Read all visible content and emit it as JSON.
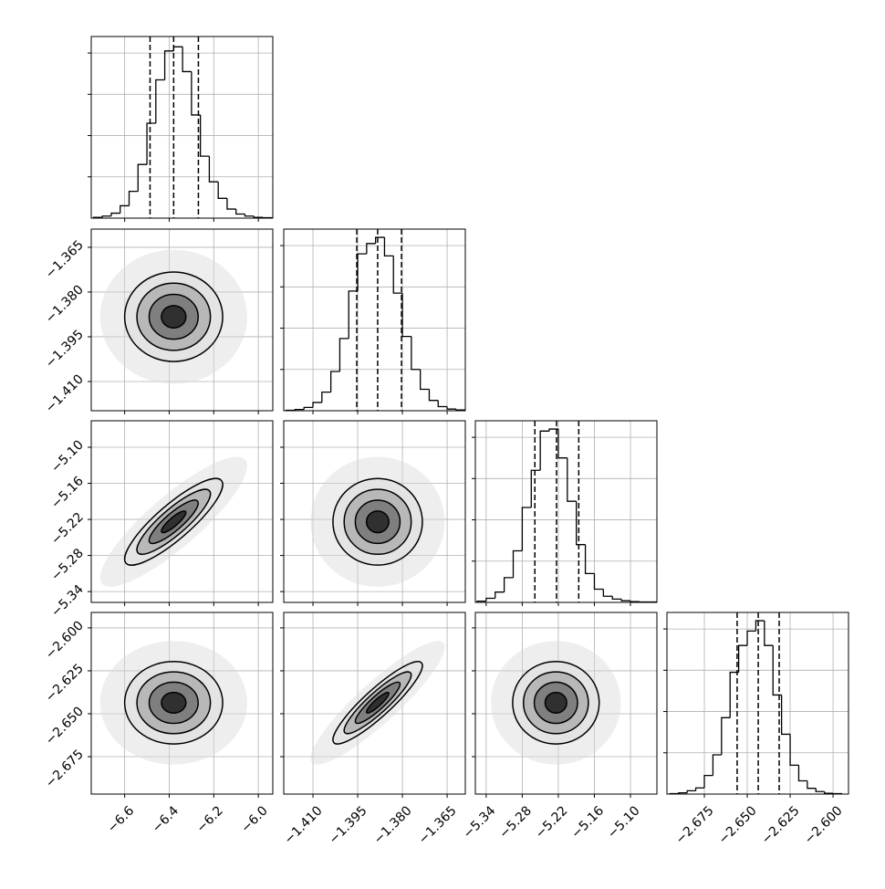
{
  "chart_data": {
    "type": "corner",
    "contour_levels": [
      2,
      1.5,
      1,
      0.5
    ],
    "contour_fills": [
      "#e4e4e4",
      "#b8b8b8",
      "#7f7f7f",
      "#303030"
    ],
    "scatter_extent": 3,
    "grid": true,
    "variables": [
      {
        "xlim": [
          -6.75,
          -5.935
        ],
        "mean": -6.38,
        "sd": 0.11,
        "xticks": [
          {
            "value": -6.6,
            "label": "−6.6"
          },
          {
            "value": -6.4,
            "label": "−6.4"
          },
          {
            "value": -6.2,
            "label": "−6.2"
          },
          {
            "value": -6.0,
            "label": "−6.0"
          }
        ],
        "quantiles": [
          -6.486,
          -6.38,
          -6.269
        ],
        "hist": {
          "bins": [
            -6.74,
            -6.7,
            -6.66,
            -6.62,
            -6.58,
            -6.54,
            -6.5,
            -6.46,
            -6.42,
            -6.38,
            -6.34,
            -6.3,
            -6.26,
            -6.22,
            -6.18,
            -6.14,
            -6.1,
            -6.06,
            -6.02,
            -5.98,
            -5.94
          ],
          "counts": [
            2,
            5,
            12,
            30,
            65,
            130,
            230,
            335,
            405,
            415,
            355,
            250,
            150,
            88,
            48,
            22,
            10,
            5,
            2,
            1
          ],
          "ylim": [
            0,
            440
          ],
          "yticks": [
            100,
            200,
            300,
            400
          ]
        }
      },
      {
        "xlim": [
          -1.4198,
          -1.3589
        ],
        "mean": -1.3883,
        "sd": 0.0075,
        "xticks": [
          {
            "value": -1.41,
            "label": "−1.410"
          },
          {
            "value": -1.395,
            "label": "−1.395"
          },
          {
            "value": -1.38,
            "label": "−1.380"
          },
          {
            "value": -1.365,
            "label": "−1.365"
          }
        ],
        "quantiles": [
          -1.3953,
          -1.3883,
          -1.3803
        ],
        "hist": {
          "bins": [
            -1.419,
            -1.416,
            -1.413,
            -1.41,
            -1.407,
            -1.404,
            -1.401,
            -1.398,
            -1.395,
            -1.392,
            -1.389,
            -1.386,
            -1.383,
            -1.38,
            -1.377,
            -1.374,
            -1.371,
            -1.368,
            -1.365,
            -1.362,
            -1.359
          ],
          "counts": [
            1,
            3,
            8,
            20,
            45,
            95,
            175,
            290,
            380,
            405,
            420,
            375,
            285,
            180,
            100,
            52,
            25,
            10,
            4,
            2
          ],
          "ylim": [
            0,
            440
          ],
          "yticks": [
            100,
            200,
            300,
            400
          ]
        }
      },
      {
        "xlim": [
          -5.358,
          -5.056
        ],
        "mean": -5.224,
        "sd": 0.036,
        "xticks": [
          {
            "value": -5.34,
            "label": "−5.34"
          },
          {
            "value": -5.28,
            "label": "−5.28"
          },
          {
            "value": -5.22,
            "label": "−5.22"
          },
          {
            "value": -5.16,
            "label": "−5.16"
          },
          {
            "value": -5.1,
            "label": "−5.10"
          }
        ],
        "quantiles": [
          -5.259,
          -5.223,
          -5.186
        ],
        "hist": {
          "bins": [
            -5.355,
            -5.34,
            -5.325,
            -5.31,
            -5.295,
            -5.28,
            -5.265,
            -5.25,
            -5.235,
            -5.22,
            -5.205,
            -5.19,
            -5.175,
            -5.16,
            -5.145,
            -5.13,
            -5.115,
            -5.1,
            -5.085,
            -5.07,
            -5.055
          ],
          "counts": [
            3,
            10,
            25,
            60,
            125,
            230,
            320,
            415,
            420,
            350,
            245,
            140,
            70,
            32,
            15,
            8,
            4,
            2,
            1,
            1
          ],
          "ylim": [
            0,
            440
          ],
          "yticks": [
            100,
            200,
            300,
            400
          ]
        }
      },
      {
        "xlim": [
          -2.6968,
          -2.591
        ],
        "mean": -2.6436,
        "sd": 0.012,
        "xticks": [
          {
            "value": -2.675,
            "label": "−2.675"
          },
          {
            "value": -2.65,
            "label": "−2.650"
          },
          {
            "value": -2.625,
            "label": "−2.625"
          },
          {
            "value": -2.6,
            "label": "−2.600"
          }
        ],
        "quantiles": [
          -2.6559,
          -2.6436,
          -2.6314
        ],
        "hist": {
          "bins": [
            -2.695,
            -2.69,
            -2.685,
            -2.68,
            -2.675,
            -2.67,
            -2.665,
            -2.66,
            -2.655,
            -2.65,
            -2.645,
            -2.64,
            -2.635,
            -2.63,
            -2.625,
            -2.62,
            -2.615,
            -2.61,
            -2.605,
            -2.6,
            -2.595
          ],
          "counts": [
            1,
            3,
            8,
            15,
            45,
            95,
            185,
            295,
            360,
            395,
            420,
            360,
            240,
            145,
            70,
            32,
            14,
            6,
            2,
            1
          ],
          "ylim": [
            0,
            440
          ],
          "yticks": [
            100,
            200,
            300,
            400
          ]
        }
      }
    ],
    "pairs": [
      {
        "x": 0,
        "y": 1,
        "correlation": 0.0
      },
      {
        "x": 0,
        "y": 2,
        "correlation": 0.86
      },
      {
        "x": 1,
        "y": 2,
        "correlation": 0.0
      },
      {
        "x": 0,
        "y": 3,
        "correlation": 0.0
      },
      {
        "x": 1,
        "y": 3,
        "correlation": 0.9
      },
      {
        "x": 2,
        "y": 3,
        "correlation": 0.0
      }
    ]
  }
}
